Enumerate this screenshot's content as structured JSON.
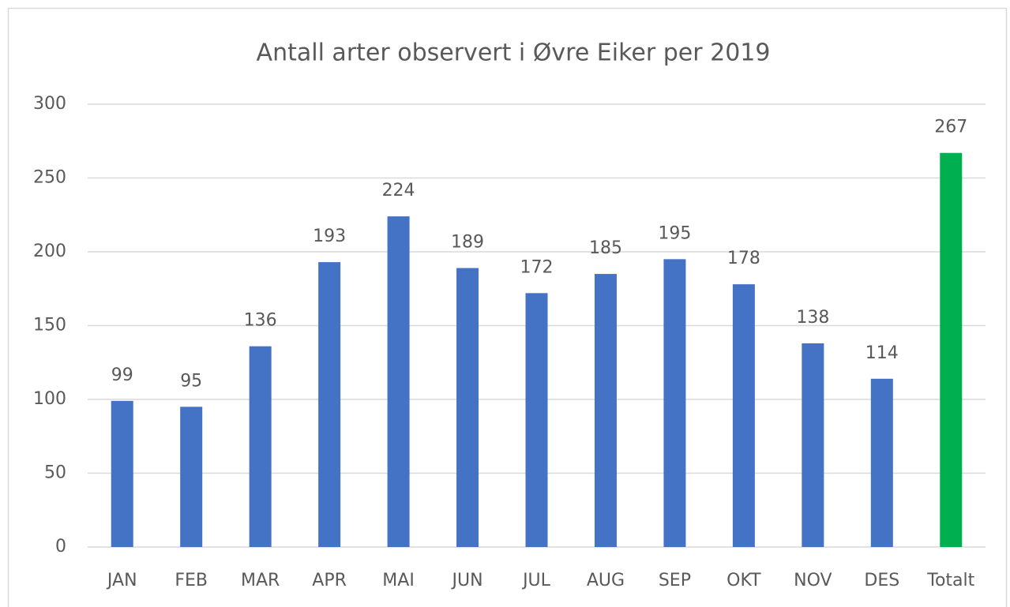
{
  "chart_data": {
    "type": "bar",
    "title": "Antall arter observert i Øvre Eiker per 2019",
    "categories": [
      "JAN",
      "FEB",
      "MAR",
      "APR",
      "MAI",
      "JUN",
      "JUL",
      "AUG",
      "SEP",
      "OKT",
      "NOV",
      "DES",
      "Totalt"
    ],
    "values": [
      99,
      95,
      136,
      193,
      224,
      189,
      172,
      185,
      195,
      178,
      138,
      114,
      267
    ],
    "colors": [
      "#4472c4",
      "#4472c4",
      "#4472c4",
      "#4472c4",
      "#4472c4",
      "#4472c4",
      "#4472c4",
      "#4472c4",
      "#4472c4",
      "#4472c4",
      "#4472c4",
      "#4472c4",
      "#00b050"
    ],
    "ylim": [
      0,
      300
    ],
    "yticks": [
      0,
      50,
      100,
      150,
      200,
      250,
      300
    ],
    "grid": true
  }
}
